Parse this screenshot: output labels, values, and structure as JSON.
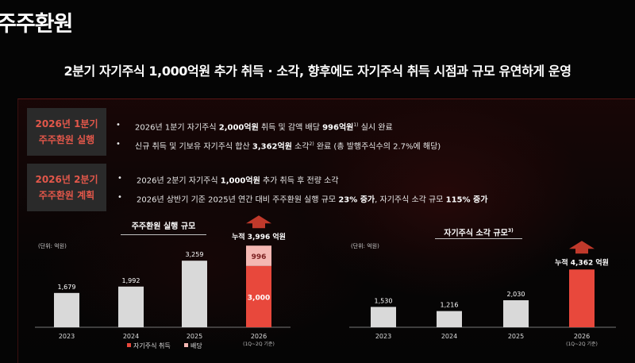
{
  "page_title": "주주환원",
  "headline": "2분기 자기주식 1,000억원 추가 취득 · 소각, 향후에도 자기주식 취득 시점과 규모 유연하게 운영",
  "sections": [
    {
      "tag_line1": "2026년 1분기",
      "tag_line2": "주주환원 실행",
      "bullets": [
        {
          "pre": "2026년 1분기 자기주식 ",
          "b1": "2,000억원",
          "mid": " 취득 및 감액 배당 ",
          "b2": "996억원",
          "sup": "1)",
          "post": " 실시 완료"
        },
        {
          "pre": "신규 취득 및 기보유 자기주식 합산 ",
          "b1": "3,362억원",
          "mid": " 소각",
          "b2": "",
          "sup": "2)",
          "post": " 완료  (총 발행주식수의 2.7%에 해당)"
        }
      ]
    },
    {
      "tag_line1": "2026년 2분기",
      "tag_line2": "주주환원 계획",
      "bullets": [
        {
          "pre": "2026년 2분기 자기주식 ",
          "b1": "1,000억원",
          "mid": " 추가 취득 후 전량 소각",
          "b2": "",
          "sup": "",
          "post": ""
        },
        {
          "pre": "2026년 상반기 기준 2025년 연간 대비 주주환원 실행 규모 ",
          "b1": "23% 증가",
          "mid": ", 자기주식 소각 규모 ",
          "b2": "115% 증가",
          "sup": "",
          "post": ""
        }
      ]
    }
  ],
  "bullet_symbol": "•",
  "chart_data": [
    {
      "type": "bar",
      "title": "주주환원 실행 규모",
      "unit": "(단위: 억원)",
      "categories": [
        "2023",
        "2024",
        "2025",
        "2026"
      ],
      "category_notes": [
        "",
        "",
        "",
        "(1Q~2Q 기준)"
      ],
      "series": [
        {
          "name": "자기주식 취득",
          "values": [
            1679,
            1992,
            3259,
            3000
          ]
        },
        {
          "name": "배당",
          "values": [
            0,
            0,
            0,
            996
          ]
        }
      ],
      "value_labels": [
        "1,679",
        "1,992",
        "3,259",
        "3,000"
      ],
      "stack_label": "996",
      "total_label": "누적 3,996 억원",
      "ylim": [
        0,
        4200
      ],
      "colors": {
        "base": "#d9d9d9",
        "highlight": "#e8483c",
        "dividend": "#f4b7b2"
      }
    },
    {
      "type": "bar",
      "title": "자기주식 소각 규모",
      "title_sup": "3)",
      "unit": "(단위: 억원)",
      "categories": [
        "2023",
        "2024",
        "2025",
        "2026"
      ],
      "category_notes": [
        "",
        "",
        "",
        "(1Q~2Q 기준)"
      ],
      "values": [
        1530,
        1216,
        2030,
        4362
      ],
      "value_labels": [
        "1,530",
        "1,216",
        "2,030",
        ""
      ],
      "total_label": "누적 4,362 억원",
      "ylim": [
        0,
        4800
      ],
      "colors": {
        "base": "#d9d9d9",
        "highlight": "#e8483c"
      }
    }
  ],
  "legend": [
    {
      "label": "자기주식 취득",
      "color": "#e8483c"
    },
    {
      "label": "배당",
      "color": "#f4b7b2"
    }
  ]
}
